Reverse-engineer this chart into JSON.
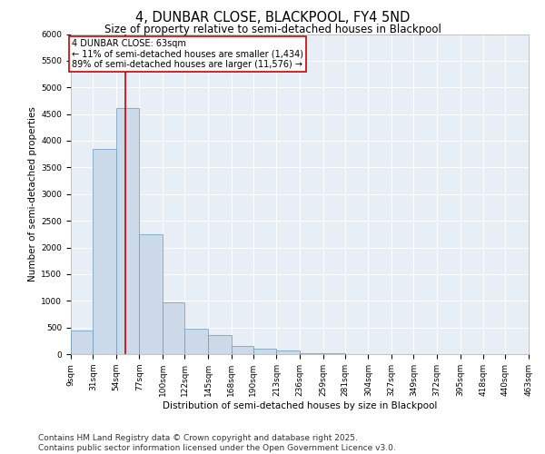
{
  "title": "4, DUNBAR CLOSE, BLACKPOOL, FY4 5ND",
  "subtitle": "Size of property relative to semi-detached houses in Blackpool",
  "xlabel": "Distribution of semi-detached houses by size in Blackpool",
  "ylabel": "Number of semi-detached properties",
  "bar_color": "#ccd9e8",
  "bar_edge_color": "#6699bb",
  "background_color": "#e8eef5",
  "grid_color": "#ffffff",
  "marker_color": "#cc0000",
  "marker_value": 63,
  "annotation_title": "4 DUNBAR CLOSE: 63sqm",
  "annotation_line1": "← 11% of semi-detached houses are smaller (1,434)",
  "annotation_line2": "89% of semi-detached houses are larger (11,576) →",
  "bin_edges": [
    9,
    31,
    54,
    77,
    100,
    122,
    145,
    168,
    190,
    213,
    236,
    259,
    281,
    304,
    327,
    349,
    372,
    395,
    418,
    440,
    463
  ],
  "bin_labels": [
    "9sqm",
    "31sqm",
    "54sqm",
    "77sqm",
    "100sqm",
    "122sqm",
    "145sqm",
    "168sqm",
    "190sqm",
    "213sqm",
    "236sqm",
    "259sqm",
    "281sqm",
    "304sqm",
    "327sqm",
    "349sqm",
    "372sqm",
    "395sqm",
    "418sqm",
    "440sqm",
    "463sqm"
  ],
  "counts": [
    450,
    3850,
    4620,
    2250,
    970,
    480,
    360,
    160,
    100,
    60,
    20,
    10,
    5,
    3,
    2,
    1,
    1,
    0,
    0,
    0
  ],
  "ylim": [
    0,
    6000
  ],
  "yticks": [
    0,
    500,
    1000,
    1500,
    2000,
    2500,
    3000,
    3500,
    4000,
    4500,
    5000,
    5500,
    6000
  ],
  "footer": "Contains HM Land Registry data © Crown copyright and database right 2025.\nContains public sector information licensed under the Open Government Licence v3.0.",
  "footer_fontsize": 6.5,
  "title_fontsize": 10.5,
  "subtitle_fontsize": 8.5,
  "label_fontsize": 7.5,
  "tick_fontsize": 6.5,
  "annotation_fontsize": 7
}
